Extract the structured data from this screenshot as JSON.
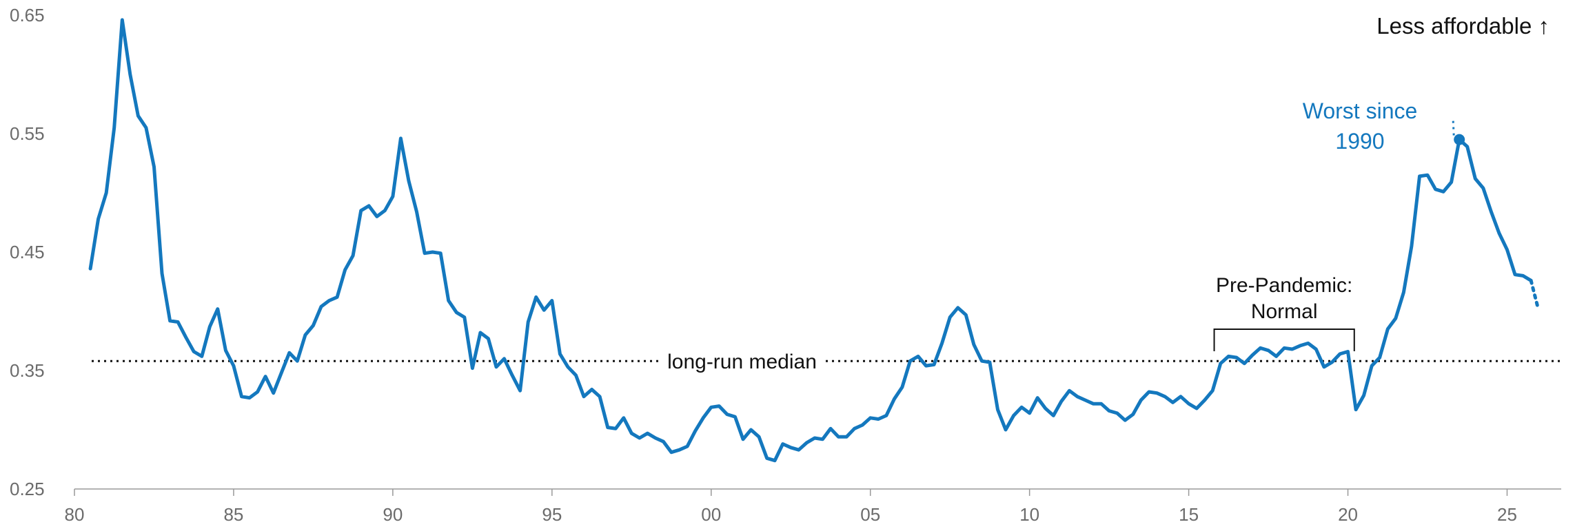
{
  "chart_data": {
    "type": "line",
    "x_ticks": [
      "80",
      "85",
      "90",
      "95",
      "00",
      "05",
      "10",
      "15",
      "20",
      "25"
    ],
    "y_ticks": [
      "0.25",
      "0.35",
      "0.45",
      "0.55",
      "0.65"
    ],
    "xlim": [
      1980,
      2026.7
    ],
    "ylim": [
      0.25,
      0.65
    ],
    "grid": false,
    "colors": {
      "series": "#1478be",
      "axis": "#999999",
      "median": "#111111",
      "text": "#111111"
    },
    "series": [
      {
        "x": [
          1980.5,
          1980.75,
          1981.0,
          1981.25,
          1981.5,
          1981.75,
          1982.0,
          1982.25,
          1982.5,
          1982.75,
          1983.0,
          1983.25,
          1983.5,
          1983.75,
          1984.0,
          1984.25,
          1984.5,
          1984.75,
          1985.0,
          1985.25,
          1985.5,
          1985.75,
          1986.0,
          1986.25,
          1986.5,
          1986.75,
          1987.0,
          1987.25,
          1987.5,
          1987.75,
          1988.0,
          1988.25,
          1988.5,
          1988.75,
          1989.0,
          1989.25,
          1989.5,
          1989.75,
          1990.0,
          1990.25,
          1990.5,
          1990.75,
          1991.0,
          1991.25,
          1991.5,
          1991.75,
          1992.0,
          1992.25,
          1992.5,
          1992.75,
          1993.0,
          1993.25,
          1993.5,
          1993.75,
          1994.0,
          1994.25,
          1994.5,
          1994.75,
          1995.0,
          1995.25,
          1995.5,
          1995.75,
          1996.0,
          1996.25,
          1996.5,
          1996.75,
          1997.0,
          1997.25,
          1997.5,
          1997.75,
          1998.0,
          1998.25,
          1998.5,
          1998.75,
          1999.0,
          1999.25,
          1999.5,
          1999.75,
          2000.0,
          2000.25,
          2000.5,
          2000.75,
          2001.0,
          2001.25,
          2001.5,
          2001.75,
          2002.0,
          2002.25,
          2002.5,
          2002.75,
          2003.0,
          2003.25,
          2003.5,
          2003.75,
          2004.0,
          2004.25,
          2004.5,
          2004.75,
          2005.0,
          2005.25,
          2005.5,
          2005.75,
          2006.0,
          2006.25,
          2006.5,
          2006.75,
          2007.0,
          2007.25,
          2007.5,
          2007.75,
          2008.0,
          2008.25,
          2008.5,
          2008.75,
          2009.0,
          2009.25,
          2009.5,
          2009.75,
          2010.0,
          2010.25,
          2010.5,
          2010.75,
          2011.0,
          2011.25,
          2011.5,
          2011.75,
          2012.0,
          2012.25,
          2012.5,
          2012.75,
          2013.0,
          2013.25,
          2013.5,
          2013.75,
          2014.0,
          2014.25,
          2014.5,
          2014.75,
          2015.0,
          2015.25,
          2015.5,
          2015.75,
          2016.0,
          2016.25,
          2016.5,
          2016.75,
          2017.0,
          2017.25,
          2017.5,
          2017.75,
          2018.0,
          2018.25,
          2018.5,
          2018.75,
          2019.0,
          2019.25,
          2019.5,
          2019.75,
          2020.0,
          2020.25,
          2020.5,
          2020.75,
          2021.0,
          2021.25,
          2021.5,
          2021.75,
          2022.0,
          2022.25,
          2022.5,
          2022.75,
          2023.0,
          2023.25,
          2023.5,
          2023.75,
          2024.0,
          2024.25,
          2024.5,
          2024.75,
          2025.0,
          2025.25,
          2025.5,
          2025.75
        ],
        "y": [
          0.436,
          0.478,
          0.5,
          0.555,
          0.646,
          0.6,
          0.565,
          0.555,
          0.522,
          0.432,
          0.392,
          0.391,
          0.378,
          0.366,
          0.362,
          0.387,
          0.402,
          0.367,
          0.354,
          0.328,
          0.327,
          0.332,
          0.345,
          0.331,
          0.348,
          0.365,
          0.358,
          0.38,
          0.388,
          0.404,
          0.409,
          0.412,
          0.435,
          0.447,
          0.485,
          0.489,
          0.48,
          0.485,
          0.497,
          0.546,
          0.51,
          0.484,
          0.449,
          0.45,
          0.449,
          0.409,
          0.399,
          0.395,
          0.352,
          0.382,
          0.377,
          0.353,
          0.36,
          0.346,
          0.333,
          0.391,
          0.412,
          0.401,
          0.409,
          0.364,
          0.353,
          0.346,
          0.328,
          0.334,
          0.328,
          0.302,
          0.301,
          0.31,
          0.297,
          0.293,
          0.297,
          0.293,
          0.29,
          0.281,
          0.283,
          0.286,
          0.299,
          0.31,
          0.319,
          0.32,
          0.313,
          0.311,
          0.292,
          0.3,
          0.294,
          0.276,
          0.274,
          0.288,
          0.285,
          0.283,
          0.289,
          0.293,
          0.292,
          0.301,
          0.294,
          0.294,
          0.301,
          0.304,
          0.31,
          0.309,
          0.312,
          0.326,
          0.336,
          0.358,
          0.362,
          0.354,
          0.355,
          0.373,
          0.395,
          0.403,
          0.397,
          0.372,
          0.358,
          0.357,
          0.317,
          0.3,
          0.312,
          0.319,
          0.314,
          0.327,
          0.318,
          0.312,
          0.324,
          0.333,
          0.328,
          0.325,
          0.322,
          0.322,
          0.316,
          0.314,
          0.308,
          0.313,
          0.325,
          0.332,
          0.331,
          0.328,
          0.323,
          0.328,
          0.322,
          0.318,
          0.325,
          0.333,
          0.356,
          0.362,
          0.361,
          0.356,
          0.363,
          0.369,
          0.367,
          0.362,
          0.369,
          0.368,
          0.371,
          0.373,
          0.368,
          0.353,
          0.357,
          0.364,
          0.366,
          0.317,
          0.329,
          0.354,
          0.361,
          0.385,
          0.394,
          0.416,
          0.455,
          0.514,
          0.515,
          0.503,
          0.501,
          0.509,
          0.545,
          0.539,
          0.512,
          0.504,
          0.484,
          0.466,
          0.452,
          0.431,
          0.43,
          0.426
        ],
        "projection": {
          "x": [
            2025.75,
            2025.95
          ],
          "y": [
            0.426,
            0.405
          ]
        }
      }
    ],
    "median": {
      "value": 0.358,
      "label": "long-run median"
    },
    "highlight": {
      "x": 2023.5,
      "y": 0.545,
      "label_lines": [
        "Worst since",
        "1990"
      ]
    },
    "bracket": {
      "x_start": 2015.8,
      "x_end": 2020.2,
      "label_lines": [
        "Pre-Pandemic:",
        "Normal"
      ]
    },
    "annotation_top_right": "Less affordable ↑"
  }
}
